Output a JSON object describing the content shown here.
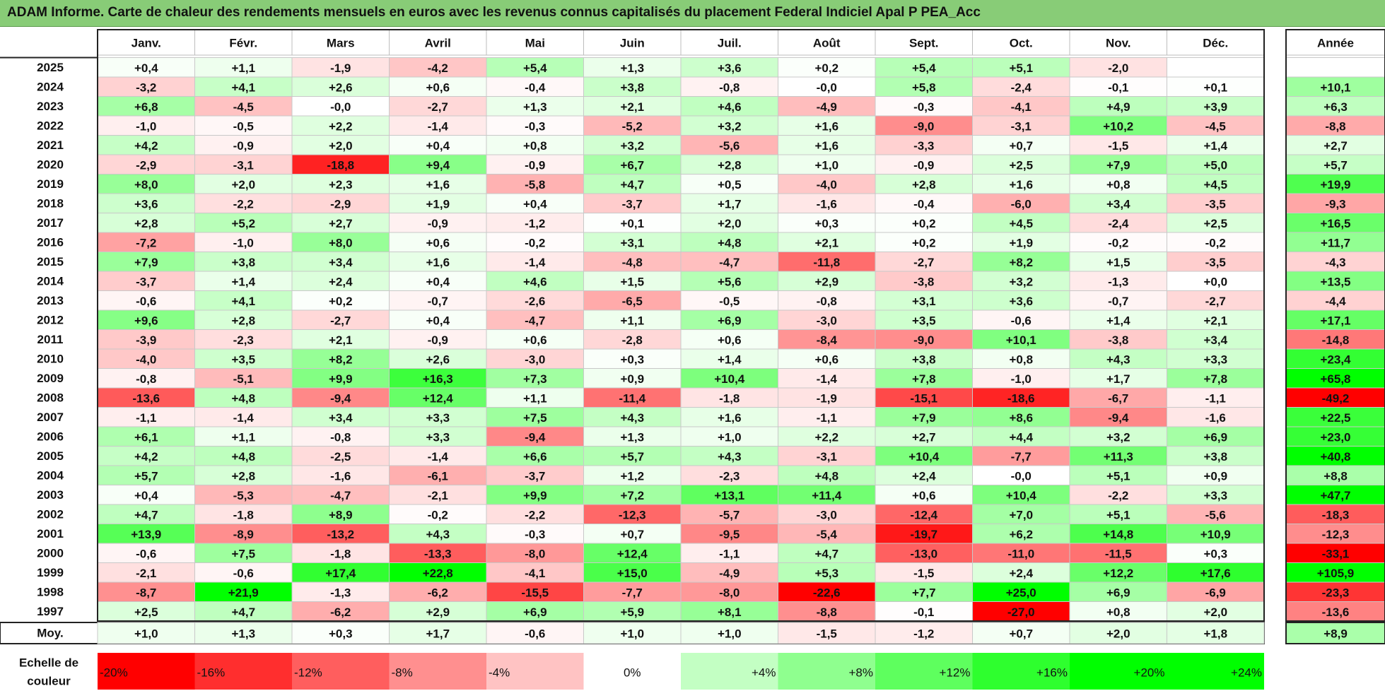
{
  "title": "ADAM Informe. Carte de chaleur des rendements mensuels en euros avec les revenus connus capitalisés du placement Federal Indiciel Apal P PEA_Acc",
  "chart_data": {
    "type": "heatmap",
    "columns": [
      "Janv.",
      "Févr.",
      "Mars",
      "Avril",
      "Mai",
      "Juin",
      "Juil.",
      "Août",
      "Sept.",
      "Oct.",
      "Nov.",
      "Déc."
    ],
    "year_column_label": "Année",
    "rows": [
      {
        "label": "2025",
        "values": [
          "+0,4",
          "+1,1",
          "-1,9",
          "-4,2",
          "+5,4",
          "+1,3",
          "+3,6",
          "+0,2",
          "+5,4",
          "+5,1",
          "-2,0",
          ""
        ],
        "annual": ""
      },
      {
        "label": "2024",
        "values": [
          "-3,2",
          "+4,1",
          "+2,6",
          "+0,6",
          "-0,4",
          "+3,8",
          "-0,8",
          "-0,0",
          "+5,8",
          "-2,4",
          "-0,1",
          "+0,1"
        ],
        "annual": "+10,1"
      },
      {
        "label": "2023",
        "values": [
          "+6,8",
          "-4,5",
          "-0,0",
          "-2,7",
          "+1,3",
          "+2,1",
          "+4,6",
          "-4,9",
          "-0,3",
          "-4,1",
          "+4,9",
          "+3,9"
        ],
        "annual": "+6,3"
      },
      {
        "label": "2022",
        "values": [
          "-1,0",
          "-0,5",
          "+2,2",
          "-1,4",
          "-0,3",
          "-5,2",
          "+3,2",
          "+1,6",
          "-9,0",
          "-3,1",
          "+10,2",
          "-4,5"
        ],
        "annual": "-8,8"
      },
      {
        "label": "2021",
        "values": [
          "+4,2",
          "-0,9",
          "+2,0",
          "+0,4",
          "+0,8",
          "+3,2",
          "-5,6",
          "+1,6",
          "-3,3",
          "+0,7",
          "-1,5",
          "+1,4"
        ],
        "annual": "+2,7"
      },
      {
        "label": "2020",
        "values": [
          "-2,9",
          "-3,1",
          "-18,8",
          "+9,4",
          "-0,9",
          "+6,7",
          "+2,8",
          "+1,0",
          "-0,9",
          "+2,5",
          "+7,9",
          "+5,0"
        ],
        "annual": "+5,7"
      },
      {
        "label": "2019",
        "values": [
          "+8,0",
          "+2,0",
          "+2,3",
          "+1,6",
          "-5,8",
          "+4,7",
          "+0,5",
          "-4,0",
          "+2,8",
          "+1,6",
          "+0,8",
          "+4,5"
        ],
        "annual": "+19,9"
      },
      {
        "label": "2018",
        "values": [
          "+3,6",
          "-2,2",
          "-2,9",
          "+1,9",
          "+0,4",
          "-3,7",
          "+1,7",
          "-1,6",
          "-0,4",
          "-6,0",
          "+3,4",
          "-3,5"
        ],
        "annual": "-9,3"
      },
      {
        "label": "2017",
        "values": [
          "+2,8",
          "+5,2",
          "+2,7",
          "-0,9",
          "-1,2",
          "+0,1",
          "+2,0",
          "+0,3",
          "+0,2",
          "+4,5",
          "-2,4",
          "+2,5"
        ],
        "annual": "+16,5"
      },
      {
        "label": "2016",
        "values": [
          "-7,2",
          "-1,0",
          "+8,0",
          "+0,6",
          "-0,2",
          "+3,1",
          "+4,8",
          "+2,1",
          "+0,2",
          "+1,9",
          "-0,2",
          "-0,2"
        ],
        "annual": "+11,7"
      },
      {
        "label": "2015",
        "values": [
          "+7,9",
          "+3,8",
          "+3,4",
          "+1,6",
          "-1,4",
          "-4,8",
          "-4,7",
          "-11,8",
          "-2,7",
          "+8,2",
          "+1,5",
          "-3,5"
        ],
        "annual": "-4,3"
      },
      {
        "label": "2014",
        "values": [
          "-3,7",
          "+1,4",
          "+2,4",
          "+0,4",
          "+4,6",
          "+1,5",
          "+5,6",
          "+2,9",
          "-3,8",
          "+3,2",
          "-1,3",
          "+0,0"
        ],
        "annual": "+13,5"
      },
      {
        "label": "2013",
        "values": [
          "-0,6",
          "+4,1",
          "+0,2",
          "-0,7",
          "-2,6",
          "-6,5",
          "-0,5",
          "-0,8",
          "+3,1",
          "+3,6",
          "-0,7",
          "-2,7"
        ],
        "annual": "-4,4"
      },
      {
        "label": "2012",
        "values": [
          "+9,6",
          "+2,8",
          "-2,7",
          "+0,4",
          "-4,7",
          "+1,1",
          "+6,9",
          "-3,0",
          "+3,5",
          "-0,6",
          "+1,4",
          "+2,1"
        ],
        "annual": "+17,1"
      },
      {
        "label": "2011",
        "values": [
          "-3,9",
          "-2,3",
          "+2,1",
          "-0,9",
          "+0,6",
          "-2,8",
          "+0,6",
          "-8,4",
          "-9,0",
          "+10,1",
          "-3,8",
          "+3,4"
        ],
        "annual": "-14,8"
      },
      {
        "label": "2010",
        "values": [
          "-4,0",
          "+3,5",
          "+8,2",
          "+2,6",
          "-3,0",
          "+0,3",
          "+1,4",
          "+0,6",
          "+3,8",
          "+0,8",
          "+4,3",
          "+3,3"
        ],
        "annual": "+23,4"
      },
      {
        "label": "2009",
        "values": [
          "-0,8",
          "-5,1",
          "+9,9",
          "+16,3",
          "+7,3",
          "+0,9",
          "+10,4",
          "-1,4",
          "+7,8",
          "-1,0",
          "+1,7",
          "+7,8"
        ],
        "annual": "+65,8"
      },
      {
        "label": "2008",
        "values": [
          "-13,6",
          "+4,8",
          "-9,4",
          "+12,4",
          "+1,1",
          "-11,4",
          "-1,8",
          "-1,9",
          "-15,1",
          "-18,6",
          "-6,7",
          "-1,1"
        ],
        "annual": "-49,2"
      },
      {
        "label": "2007",
        "values": [
          "-1,1",
          "-1,4",
          "+3,4",
          "+3,3",
          "+7,5",
          "+4,3",
          "+1,6",
          "-1,1",
          "+7,9",
          "+8,6",
          "-9,4",
          "-1,6"
        ],
        "annual": "+22,5"
      },
      {
        "label": "2006",
        "values": [
          "+6,1",
          "+1,1",
          "-0,8",
          "+3,3",
          "-9,4",
          "+1,3",
          "+1,0",
          "+2,2",
          "+2,7",
          "+4,4",
          "+3,2",
          "+6,9"
        ],
        "annual": "+23,0"
      },
      {
        "label": "2005",
        "values": [
          "+4,2",
          "+4,8",
          "-2,5",
          "-1,4",
          "+6,6",
          "+5,7",
          "+4,3",
          "-3,1",
          "+10,4",
          "-7,7",
          "+11,3",
          "+3,8"
        ],
        "annual": "+40,8"
      },
      {
        "label": "2004",
        "values": [
          "+5,7",
          "+2,8",
          "-1,6",
          "-6,1",
          "-3,7",
          "+1,2",
          "-2,3",
          "+4,8",
          "+2,4",
          "-0,0",
          "+5,1",
          "+0,9"
        ],
        "annual": "+8,8"
      },
      {
        "label": "2003",
        "values": [
          "+0,4",
          "-5,3",
          "-4,7",
          "-2,1",
          "+9,9",
          "+7,2",
          "+13,1",
          "+11,4",
          "+0,6",
          "+10,4",
          "-2,2",
          "+3,3"
        ],
        "annual": "+47,7"
      },
      {
        "label": "2002",
        "values": [
          "+4,7",
          "-1,8",
          "+8,9",
          "-0,2",
          "-2,2",
          "-12,3",
          "-5,7",
          "-3,0",
          "-12,4",
          "+7,0",
          "+5,1",
          "-5,6"
        ],
        "annual": "-18,3"
      },
      {
        "label": "2001",
        "values": [
          "+13,9",
          "-8,9",
          "-13,2",
          "+4,3",
          "-0,3",
          "+0,7",
          "-9,5",
          "-5,4",
          "-19,7",
          "+6,2",
          "+14,8",
          "+10,9"
        ],
        "annual": "-12,3"
      },
      {
        "label": "2000",
        "values": [
          "-0,6",
          "+7,5",
          "-1,8",
          "-13,3",
          "-8,0",
          "+12,4",
          "-1,1",
          "+4,7",
          "-13,0",
          "-11,0",
          "-11,5",
          "+0,3"
        ],
        "annual": "-33,1"
      },
      {
        "label": "1999",
        "values": [
          "-2,1",
          "-0,6",
          "+17,4",
          "+22,8",
          "-4,1",
          "+15,0",
          "-4,9",
          "+5,3",
          "-1,5",
          "+2,4",
          "+12,2",
          "+17,6"
        ],
        "annual": "+105,9"
      },
      {
        "label": "1998",
        "values": [
          "-8,7",
          "+21,9",
          "-1,3",
          "-6,2",
          "-15,5",
          "-7,7",
          "-8,0",
          "-22,6",
          "+7,7",
          "+25,0",
          "+6,9",
          "-6,9"
        ],
        "annual": "-23,3"
      },
      {
        "label": "1997",
        "values": [
          "+2,5",
          "+4,7",
          "-6,2",
          "+2,9",
          "+6,9",
          "+5,9",
          "+8,1",
          "-8,8",
          "-0,1",
          "-27,0",
          "+0,8",
          "+2,0"
        ],
        "annual": "-13,6"
      }
    ],
    "average_row": {
      "label": "Moy.",
      "values": [
        "+1,0",
        "+1,3",
        "+0,3",
        "+1,7",
        "-0,6",
        "+1,0",
        "+1,0",
        "-1,5",
        "-1,2",
        "+0,7",
        "+2,0",
        "+1,8"
      ],
      "annual": "+8,9"
    },
    "color_scale": {
      "label_line1": "Echelle de",
      "label_line2": "couleur",
      "stops": [
        "-20%",
        "-16%",
        "-12%",
        "-8%",
        "-4%",
        "0%",
        "+4%",
        "+8%",
        "+12%",
        "+16%",
        "+20%",
        "+24%"
      ],
      "negative_color": "#ff0000",
      "neutral_color": "#ffffff",
      "positive_color": "#00ff00"
    }
  }
}
